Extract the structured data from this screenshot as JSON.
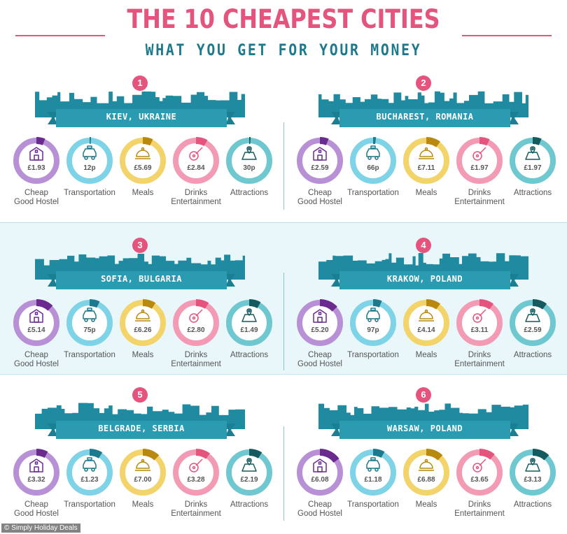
{
  "header": {
    "title": "THE 10 CHEAPEST CITIES",
    "subtitle": "WHAT YOU GET FOR YOUR MONEY"
  },
  "labels": {
    "hostel": "Cheap\nGood Hostel",
    "transport": "Transportation",
    "meals": "Meals",
    "drinks": "Drinks\nEntertainment",
    "attractions": "Attractions"
  },
  "colors": {
    "hostel": "#b890d6",
    "transport": "#7ed3e6",
    "meals": "#f3d46a",
    "drinks": "#f39bb4",
    "attractions": "#6fc7cf",
    "hostel_accent": "#6b2a8e",
    "transport_accent": "#1d7a8c",
    "meals_accent": "#b8890e",
    "drinks_accent": "#e4547d",
    "attractions_accent": "#145a5f",
    "banner": "#2a9bb0",
    "skyline": "#1f8aa0",
    "pink": "#e4547d"
  },
  "cities": [
    {
      "rank": "1",
      "name": "KIEV, UKRAINE",
      "hostel": "£1.93",
      "transport": "12p",
      "meals": "£5.69",
      "drinks": "£2.84",
      "attractions": "30p",
      "fractions": {
        "hostel": 0.06,
        "transport": 0.01,
        "meals": 0.07,
        "drinks": 0.08,
        "attractions": 0.01
      }
    },
    {
      "rank": "2",
      "name": "BUCHAREST, ROMANIA",
      "hostel": "£2.59",
      "transport": "66p",
      "meals": "£7.11",
      "drinks": "£1.97",
      "attractions": "£1.97",
      "fractions": {
        "hostel": 0.06,
        "transport": 0.02,
        "meals": 0.1,
        "drinks": 0.07,
        "attractions": 0.06
      }
    },
    {
      "rank": "3",
      "name": "SOFIA, BULGARIA",
      "hostel": "£5.14",
      "transport": "75p",
      "meals": "£6.26",
      "drinks": "£2.80",
      "attractions": "£1.49",
      "fractions": {
        "hostel": 0.12,
        "transport": 0.07,
        "meals": 0.09,
        "drinks": 0.09,
        "attractions": 0.08
      }
    },
    {
      "rank": "4",
      "name": "KRAKOW, POLAND",
      "hostel": "£5.20",
      "transport": "97p",
      "meals": "£4.14",
      "drinks": "£3.11",
      "attractions": "£2.59",
      "fractions": {
        "hostel": 0.13,
        "transport": 0.06,
        "meals": 0.1,
        "drinks": 0.1,
        "attractions": 0.1
      }
    },
    {
      "rank": "5",
      "name": "BELGRADE, SERBIA",
      "hostel": "£3.32",
      "transport": "£1.23",
      "meals": "£7.00",
      "drinks": "£3.28",
      "attractions": "£2.19",
      "fractions": {
        "hostel": 0.08,
        "transport": 0.09,
        "meals": 0.12,
        "drinks": 0.1,
        "attractions": 0.09
      }
    },
    {
      "rank": "6",
      "name": "WARSAW, POLAND",
      "hostel": "£6.08",
      "transport": "£1.18",
      "meals": "£6.88",
      "drinks": "£3.65",
      "attractions": "£3.13",
      "fractions": {
        "hostel": 0.15,
        "transport": 0.08,
        "meals": 0.12,
        "drinks": 0.11,
        "attractions": 0.12
      }
    }
  ],
  "credit": "© Simply Holiday Deals"
}
